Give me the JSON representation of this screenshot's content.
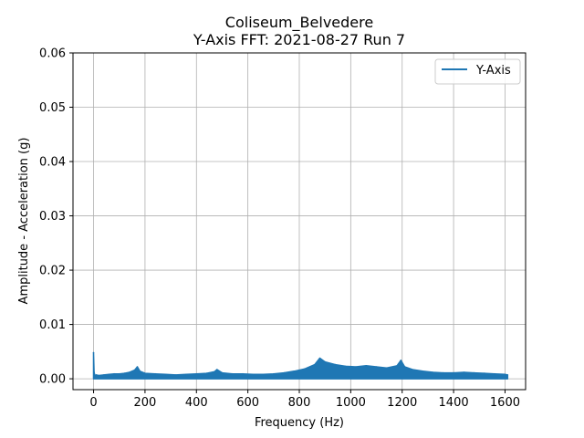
{
  "chart_data": {
    "type": "line",
    "title": "Coliseum_Belvedere",
    "subtitle": "Y-Axis FFT: 2021-08-27 Run 7",
    "xlabel": "Frequency (Hz)",
    "ylabel": "Amplitude - Acceleration (g)",
    "xlim": [
      -80,
      1680
    ],
    "ylim": [
      -0.002,
      0.06
    ],
    "x_ticks": [
      0,
      200,
      400,
      600,
      800,
      1000,
      1200,
      1400,
      1600
    ],
    "y_ticks": [
      0.0,
      0.01,
      0.02,
      0.03,
      0.04,
      0.05,
      0.06
    ],
    "x_tick_labels": [
      "0",
      "200",
      "400",
      "600",
      "800",
      "1000",
      "1200",
      "1400",
      "1600"
    ],
    "y_tick_labels": [
      "0.00",
      "0.01",
      "0.02",
      "0.03",
      "0.04",
      "0.05",
      "0.06"
    ],
    "grid": true,
    "legend_position": "top-right",
    "colors": {
      "series": "#1f77b4",
      "grid": "#b0b0b0",
      "axis": "#000000"
    },
    "series": [
      {
        "name": "Y-Axis",
        "x": [
          0,
          2,
          5,
          10,
          20,
          40,
          60,
          80,
          100,
          120,
          140,
          160,
          170,
          180,
          200,
          240,
          280,
          320,
          360,
          400,
          440,
          470,
          480,
          500,
          540,
          580,
          620,
          660,
          700,
          740,
          780,
          820,
          860,
          880,
          900,
          940,
          980,
          1020,
          1060,
          1100,
          1140,
          1180,
          1195,
          1210,
          1240,
          1280,
          1320,
          1360,
          1400,
          1440,
          1480,
          1520,
          1560,
          1600,
          1610
        ],
        "y": [
          0.0048,
          0.0012,
          0.0006,
          0.0007,
          0.0006,
          0.0007,
          0.0008,
          0.0009,
          0.0009,
          0.001,
          0.0012,
          0.0016,
          0.0022,
          0.0014,
          0.001,
          0.0009,
          0.0008,
          0.0007,
          0.0008,
          0.0009,
          0.001,
          0.0013,
          0.0017,
          0.0011,
          0.0009,
          0.0009,
          0.0008,
          0.0008,
          0.0009,
          0.0011,
          0.0014,
          0.0018,
          0.0026,
          0.0038,
          0.0031,
          0.0026,
          0.0023,
          0.0022,
          0.0024,
          0.0022,
          0.002,
          0.0024,
          0.0034,
          0.0022,
          0.0017,
          0.0014,
          0.0012,
          0.0011,
          0.0011,
          0.0012,
          0.0011,
          0.001,
          0.0009,
          0.0008,
          0.0007
        ]
      }
    ]
  }
}
